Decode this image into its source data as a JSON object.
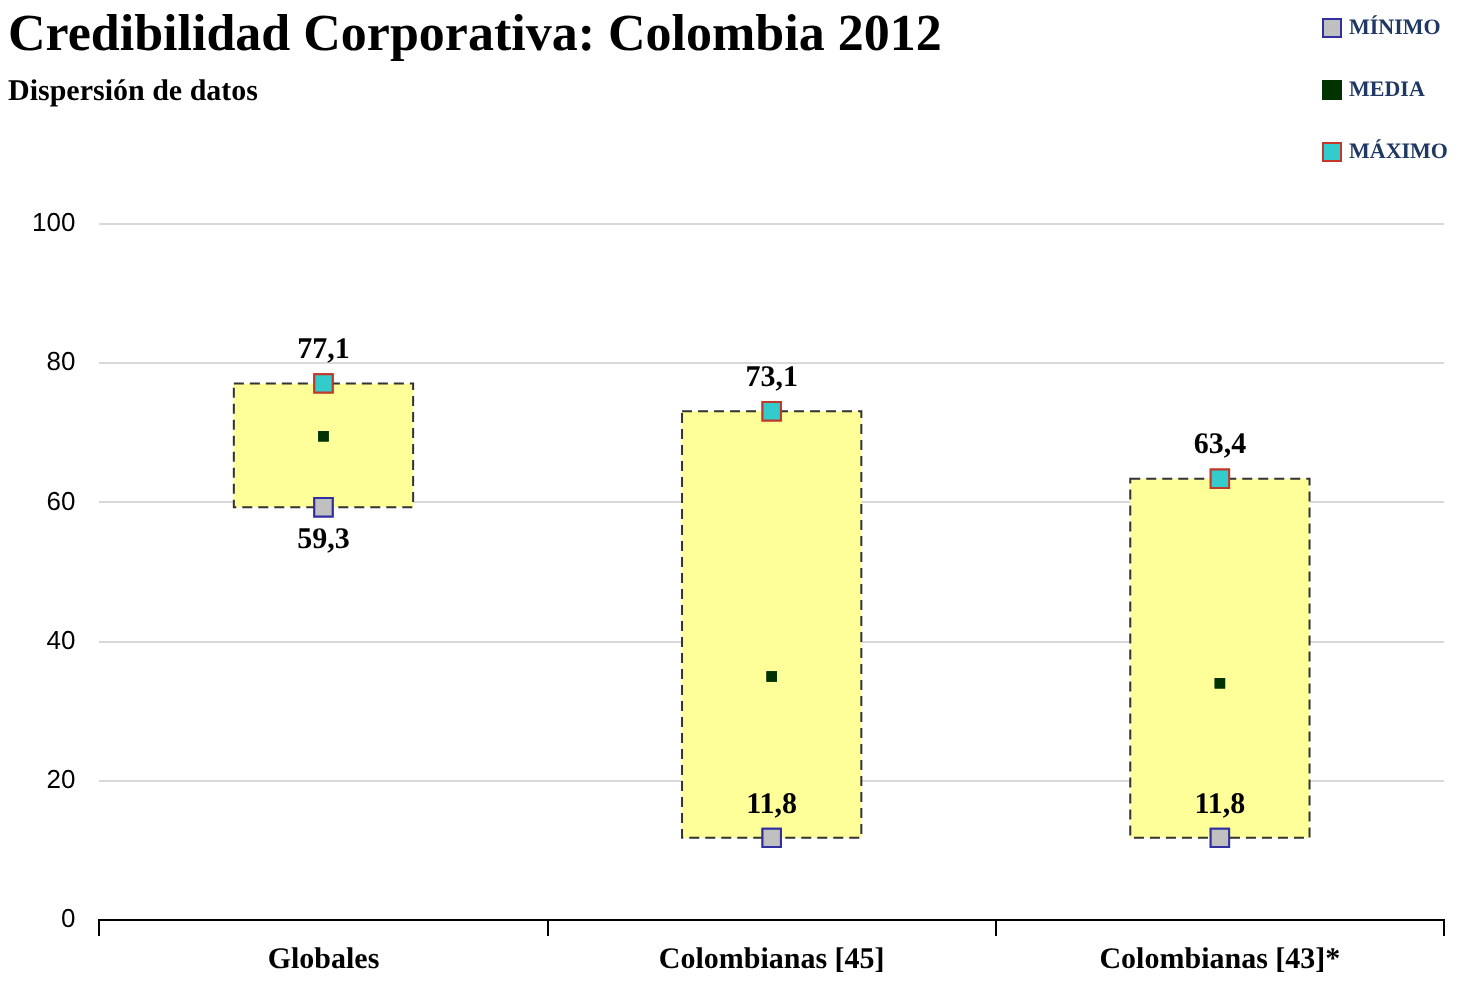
{
  "chart_data": {
    "type": "bar",
    "title": "Credibilidad Corporativa: Colombia 2012",
    "subtitle": "Dispersión de datos",
    "categories": [
      "Globales",
      "Colombianas [45]",
      "Colombianas [43]*"
    ],
    "series": [
      {
        "color": "#ffff99",
        "base": [
          59.3,
          11.8,
          11.8
        ],
        "values": [
          17.8,
          61.3,
          51.6
        ],
        "line_style": "dashed"
      },
      {
        "type": "scatter",
        "name": "MÍNIMO",
        "color": "#c0c0c0",
        "marker": "square",
        "x": [
          "Globales",
          "Colombianas [45]",
          "Colombianas [43]*"
        ],
        "values": [
          59.3,
          11.8,
          11.8
        ],
        "value_labels": [
          "59,3",
          "11,8",
          "11,8"
        ]
      },
      {
        "type": "scatter",
        "name": "MEDIA",
        "color": "#003300",
        "marker": "square",
        "x": [
          "Globales",
          "Colombianas [45]",
          "Colombianas [43]*"
        ],
        "values": [
          69.5,
          35,
          34
        ]
      },
      {
        "type": "scatter",
        "name": "MÁXIMO",
        "color": "#33cccc",
        "marker": "square",
        "x": [
          "Globales",
          "Colombianas [45]",
          "Colombianas [43]*"
        ],
        "values": [
          77.1,
          73.1,
          63.4
        ],
        "value_labels": [
          "77,1",
          "73,1",
          "63,4"
        ]
      }
    ],
    "ylim": [
      0,
      100
    ],
    "yticks": [
      0,
      20,
      40,
      60,
      80,
      100
    ],
    "grid": "y",
    "legend": "top right"
  }
}
